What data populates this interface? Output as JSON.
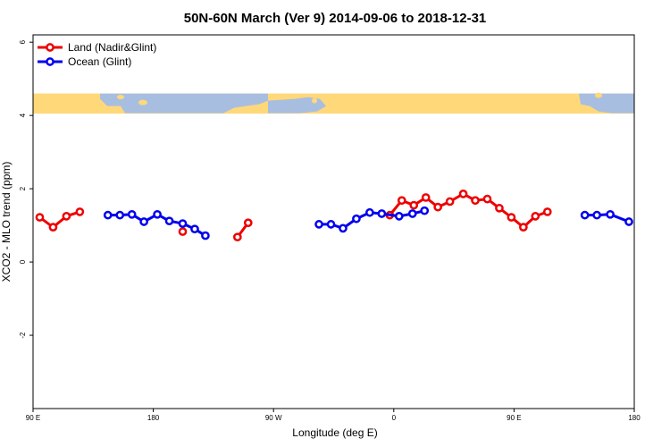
{
  "chart_data": {
    "type": "line",
    "title": "50N-60N March (Ver 9)   2014-09-06 to 2018-12-31",
    "xlabel": "Longitude (deg E)",
    "ylabel": "XCO2 - MLO trend (ppm)",
    "xlim": [
      90,
      540
    ],
    "ylim": [
      -4,
      6.2
    ],
    "x_ticks": [
      {
        "value": 90,
        "label": "90 E"
      },
      {
        "value": 180,
        "label": "180"
      },
      {
        "value": 270,
        "label": "90 W"
      },
      {
        "value": 360,
        "label": "0"
      },
      {
        "value": 450,
        "label": "90 E"
      },
      {
        "value": 540,
        "label": "180"
      }
    ],
    "y_ticks": [
      {
        "value": -2,
        "label": "-2"
      },
      {
        "value": 0,
        "label": "0"
      },
      {
        "value": 2,
        "label": "2"
      },
      {
        "value": 4,
        "label": "4"
      },
      {
        "value": 6,
        "label": "6"
      }
    ],
    "legend": "top-left",
    "map_strip": {
      "y_bottom": 4.05,
      "y_top": 4.6,
      "land_color": "#FFD87A",
      "ocean_color": "#A8BEE0"
    },
    "series": [
      {
        "name": "Land (Nadir&Glint)",
        "color": "#EE0000",
        "segments": [
          [
            [
              95,
              1.22
            ],
            [
              105,
              0.95
            ],
            [
              115,
              1.25
            ],
            [
              125,
              1.37
            ]
          ],
          [
            [
              202,
              0.83
            ]
          ],
          [
            [
              243,
              0.68
            ],
            [
              251,
              1.07
            ]
          ],
          [
            [
              357,
              1.28
            ],
            [
              366,
              1.68
            ],
            [
              375,
              1.55
            ],
            [
              384,
              1.76
            ],
            [
              393,
              1.5
            ],
            [
              402,
              1.65
            ],
            [
              412,
              1.86
            ],
            [
              421,
              1.68
            ],
            [
              430,
              1.72
            ],
            [
              439,
              1.47
            ],
            [
              448,
              1.22
            ],
            [
              457,
              0.95
            ],
            [
              466,
              1.25
            ],
            [
              475,
              1.37
            ]
          ]
        ]
      },
      {
        "name": "Ocean (Glint)",
        "color": "#0000EE",
        "segments": [
          [
            [
              146,
              1.28
            ],
            [
              155,
              1.28
            ],
            [
              164,
              1.3
            ],
            [
              173,
              1.1
            ],
            [
              183,
              1.3
            ],
            [
              192,
              1.12
            ],
            [
              202,
              1.05
            ],
            [
              211,
              0.9
            ],
            [
              219,
              0.72
            ]
          ],
          [
            [
              304,
              1.03
            ],
            [
              313,
              1.03
            ],
            [
              322,
              0.92
            ],
            [
              332,
              1.18
            ],
            [
              342,
              1.35
            ],
            [
              351,
              1.32
            ],
            [
              364,
              1.25
            ],
            [
              374,
              1.32
            ],
            [
              383,
              1.4
            ]
          ],
          [
            [
              503,
              1.28
            ],
            [
              512,
              1.28
            ],
            [
              522,
              1.3
            ],
            [
              536,
              1.1
            ]
          ]
        ]
      }
    ]
  }
}
